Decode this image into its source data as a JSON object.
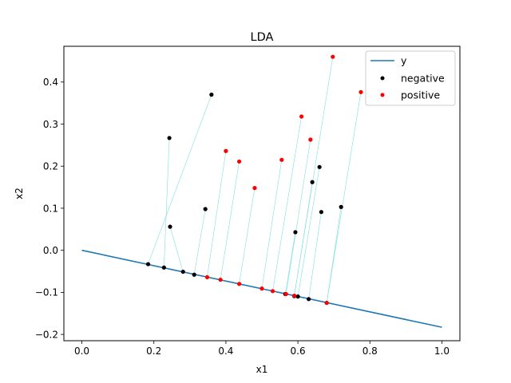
{
  "chart_data": {
    "type": "scatter",
    "title": "LDA",
    "xlabel": "x1",
    "ylabel": "x2",
    "xlim": [
      -0.05,
      1.05
    ],
    "ylim": [
      -0.215,
      0.485
    ],
    "xticks": [
      0.0,
      0.2,
      0.4,
      0.6,
      0.8,
      1.0
    ],
    "yticks": [
      -0.2,
      -0.1,
      0.0,
      0.1,
      0.2,
      0.3,
      0.4
    ],
    "xtick_labels": [
      "0.0",
      "0.2",
      "0.4",
      "0.6",
      "0.8",
      "1.0"
    ],
    "ytick_labels": [
      "−0.2",
      "−0.1",
      "0.0",
      "0.1",
      "0.2",
      "0.3",
      "0.4"
    ],
    "grid": false,
    "legend_position": "top-right",
    "projection_line": {
      "name": "y",
      "x": [
        0.0,
        1.0
      ],
      "y": [
        0.0,
        -0.183
      ],
      "color": "#1f77b4"
    },
    "series": [
      {
        "name": "negative",
        "color": "#000000",
        "points": [
          {
            "x": 0.243,
            "y": 0.267
          },
          {
            "x": 0.36,
            "y": 0.37
          },
          {
            "x": 0.245,
            "y": 0.056
          },
          {
            "x": 0.343,
            "y": 0.098
          },
          {
            "x": 0.593,
            "y": 0.043
          },
          {
            "x": 0.64,
            "y": 0.162
          },
          {
            "x": 0.66,
            "y": 0.198
          },
          {
            "x": 0.665,
            "y": 0.091
          },
          {
            "x": 0.72,
            "y": 0.103
          }
        ],
        "projections": [
          {
            "x": 0.228,
            "y": -0.041
          },
          {
            "x": 0.184,
            "y": -0.033
          },
          {
            "x": 0.281,
            "y": -0.051
          },
          {
            "x": 0.312,
            "y": -0.058
          },
          {
            "x": 0.565,
            "y": -0.104
          },
          {
            "x": 0.59,
            "y": -0.109
          },
          {
            "x": 0.6,
            "y": -0.11
          },
          {
            "x": 0.63,
            "y": -0.116
          },
          {
            "x": 0.68,
            "y": -0.125
          }
        ]
      },
      {
        "name": "positive",
        "color": "#ff0000",
        "points": [
          {
            "x": 0.4,
            "y": 0.236
          },
          {
            "x": 0.437,
            "y": 0.211
          },
          {
            "x": 0.48,
            "y": 0.148
          },
          {
            "x": 0.555,
            "y": 0.215
          },
          {
            "x": 0.61,
            "y": 0.318
          },
          {
            "x": 0.635,
            "y": 0.263
          },
          {
            "x": 0.697,
            "y": 0.46
          },
          {
            "x": 0.775,
            "y": 0.376
          }
        ],
        "projections": [
          {
            "x": 0.348,
            "y": -0.064
          },
          {
            "x": 0.385,
            "y": -0.07
          },
          {
            "x": 0.437,
            "y": -0.08
          },
          {
            "x": 0.5,
            "y": -0.091
          },
          {
            "x": 0.53,
            "y": -0.097
          },
          {
            "x": 0.567,
            "y": -0.104
          },
          {
            "x": 0.59,
            "y": -0.108
          },
          {
            "x": 0.68,
            "y": -0.125
          }
        ]
      }
    ],
    "projection_link_color": "#7fdfdf"
  }
}
